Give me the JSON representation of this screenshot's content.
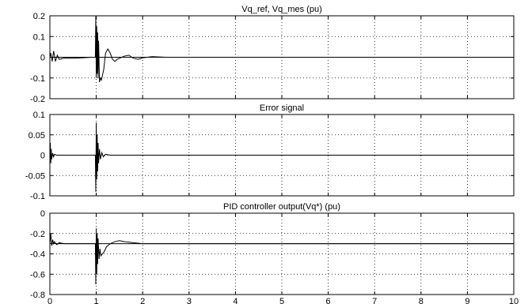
{
  "chart_data": [
    {
      "type": "line",
      "title": "Vq_ref, Vq_mes (pu)",
      "xlim": [
        0,
        10
      ],
      "ylim": [
        -0.2,
        0.2
      ],
      "xticks": [
        "0",
        "1",
        "2",
        "3",
        "4",
        "5",
        "6",
        "7",
        "8",
        "9",
        "10"
      ],
      "yticks": [
        "0.2",
        "0.1",
        "0",
        "-0.1",
        "-0.2"
      ],
      "grid": true,
      "series": [
        {
          "x": [
            0,
            0.02,
            0.05,
            0.08,
            0.12,
            0.16,
            0.2,
            0.3,
            0.5,
            0.7,
            0.9,
            0.98,
            0.99,
            1.0,
            1.01,
            1.02,
            1.03,
            1.04,
            1.05,
            1.07,
            1.09,
            1.11,
            1.13,
            1.16,
            1.2,
            1.25,
            1.3,
            1.35,
            1.4,
            1.45,
            1.5,
            1.6,
            1.7,
            1.8,
            1.9,
            2.0,
            2.2,
            2.5,
            3.0,
            4.0,
            5.0,
            6.0,
            7.0,
            8.0,
            8.35
          ],
          "y": [
            0,
            0.02,
            -0.02,
            0.03,
            -0.02,
            0.01,
            -0.01,
            -0.005,
            -0.005,
            -0.003,
            0,
            0,
            0.2,
            -0.1,
            0.15,
            -0.08,
            0.12,
            -0.1,
            0.08,
            -0.12,
            -0.1,
            -0.11,
            -0.09,
            -0.06,
            0.02,
            0.04,
            0.02,
            -0.01,
            -0.02,
            -0.01,
            -0.005,
            0.005,
            0.01,
            -0.005,
            -0.01,
            -0.003,
            0.003,
            0,
            0,
            0,
            0,
            0,
            0,
            0,
            0
          ]
        },
        {
          "x": [
            0,
            10
          ],
          "y": [
            0,
            0
          ]
        }
      ]
    },
    {
      "type": "line",
      "title": "Error signal",
      "xlim": [
        0,
        10
      ],
      "ylim": [
        -0.1,
        0.1
      ],
      "xticks": [
        "0",
        "1",
        "2",
        "3",
        "4",
        "5",
        "6",
        "7",
        "8",
        "9",
        "10"
      ],
      "yticks": [
        "0.1",
        "0.05",
        "0",
        "-0.05",
        "-0.1"
      ],
      "grid": true,
      "series": [
        {
          "x": [
            0,
            0.01,
            0.02,
            0.03,
            0.04,
            0.06,
            0.08,
            0.1,
            0.14,
            0.2,
            0.5,
            0.98,
            0.99,
            1.0,
            1.01,
            1.02,
            1.03,
            1.04,
            1.05,
            1.07,
            1.09,
            1.12,
            1.15,
            1.2,
            1.3,
            1.5,
            2.0,
            5.0,
            10.0
          ],
          "y": [
            0,
            0.03,
            -0.02,
            0.015,
            -0.01,
            0.005,
            -0.004,
            0.002,
            0,
            0,
            0,
            0,
            -0.09,
            0.08,
            -0.06,
            0.05,
            -0.04,
            0.03,
            -0.02,
            0.015,
            -0.01,
            0.006,
            -0.004,
            0.002,
            0,
            0,
            0,
            0,
            0
          ]
        }
      ]
    },
    {
      "type": "line",
      "title": "PID controller output(Vq*) (pu)",
      "xlim": [
        0,
        10
      ],
      "ylim": [
        -0.8,
        0
      ],
      "xticks": [
        "0",
        "1",
        "2",
        "3",
        "4",
        "5",
        "6",
        "7",
        "8",
        "9",
        "10"
      ],
      "yticks": [
        "0",
        "-0.2",
        "-0.4",
        "-0.6",
        "-0.8"
      ],
      "grid": true,
      "series": [
        {
          "x": [
            0,
            0.02,
            0.04,
            0.06,
            0.08,
            0.1,
            0.15,
            0.2,
            0.3,
            0.5,
            0.9,
            0.98,
            0.99,
            1.0,
            1.01,
            1.02,
            1.03,
            1.04,
            1.06,
            1.08,
            1.1,
            1.13,
            1.17,
            1.22,
            1.3,
            1.4,
            1.5,
            1.6,
            1.8,
            2.0,
            2.3,
            2.6,
            3.0,
            4.0,
            10.0
          ],
          "y": [
            -0.3,
            -0.2,
            -0.32,
            -0.26,
            -0.3,
            -0.28,
            -0.31,
            -0.29,
            -0.3,
            -0.3,
            -0.3,
            -0.3,
            -0.7,
            -0.15,
            -0.6,
            -0.2,
            -0.5,
            -0.25,
            -0.45,
            -0.35,
            -0.42,
            -0.4,
            -0.38,
            -0.33,
            -0.3,
            -0.28,
            -0.27,
            -0.28,
            -0.29,
            -0.3,
            -0.3,
            -0.3,
            -0.3,
            -0.3,
            -0.3
          ]
        },
        {
          "x": [
            0,
            10
          ],
          "y": [
            -0.3,
            -0.3
          ]
        }
      ]
    }
  ]
}
